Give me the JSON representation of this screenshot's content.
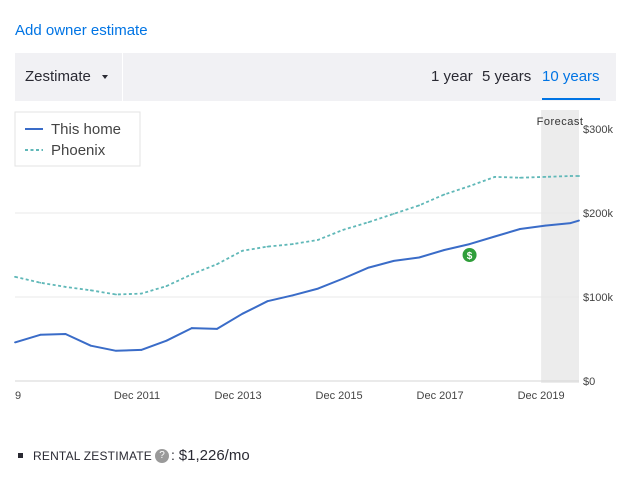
{
  "add_owner_estimate": "Add owner estimate",
  "toolbar": {
    "dropdown_label": "Zestimate",
    "periods": [
      {
        "label": "1 year",
        "active": false
      },
      {
        "label": "5 years",
        "active": false
      },
      {
        "label": "10 years",
        "active": true
      }
    ]
  },
  "rental": {
    "label": "RENTAL ZESTIMATE",
    "info_icon": "?",
    "separator": ":",
    "value": "$1,226/mo"
  },
  "colors": {
    "accent": "#0074e4",
    "this_home": "#3a6cc8",
    "phoenix": "#60b8b8",
    "forecast_band": "#ececec",
    "gridline": "#e8e8e8",
    "marker": "#2f9e3a"
  },
  "chart_data": {
    "type": "line",
    "forecast_label": "Forecast",
    "forecast_start": "Dec 2019",
    "x_tick_labels": [
      "9",
      "Dec 2011",
      "Dec 2013",
      "Dec 2015",
      "Dec 2017",
      "Dec 2019"
    ],
    "y_tick_labels": [
      "$0",
      "$100k",
      "$200k",
      "$300k"
    ],
    "ylim": [
      0,
      300000
    ],
    "xlim": [
      "Jul 2009",
      "Sep 2020"
    ],
    "grid": true,
    "legend_position": "top-left",
    "sale_marker": {
      "date": "Jul 2018",
      "value": 150000,
      "icon": "dollar-sign-icon"
    },
    "series": [
      {
        "name": "This home",
        "style": "solid",
        "color": "#3a6cc8",
        "points": [
          [
            "Jul 2009",
            46000
          ],
          [
            "Jan 2010",
            55000
          ],
          [
            "Jul 2010",
            56000
          ],
          [
            "Jan 2011",
            42000
          ],
          [
            "Jul 2011",
            36000
          ],
          [
            "Jan 2012",
            37000
          ],
          [
            "Jul 2012",
            48000
          ],
          [
            "Jan 2013",
            63000
          ],
          [
            "Jul 2013",
            62000
          ],
          [
            "Jan 2014",
            80000
          ],
          [
            "Jul 2014",
            95000
          ],
          [
            "Jan 2015",
            102000
          ],
          [
            "Jul 2015",
            110000
          ],
          [
            "Jan 2016",
            122000
          ],
          [
            "Jul 2016",
            135000
          ],
          [
            "Jan 2017",
            143000
          ],
          [
            "Jul 2017",
            147000
          ],
          [
            "Jan 2018",
            156000
          ],
          [
            "Jul 2018",
            163000
          ],
          [
            "Jan 2019",
            172000
          ],
          [
            "Jul 2019",
            181000
          ],
          [
            "Jan 2020",
            185000
          ],
          [
            "Jul 2020",
            188000
          ],
          [
            "Sep 2020",
            191000
          ]
        ]
      },
      {
        "name": "Phoenix",
        "style": "dashed",
        "color": "#60b8b8",
        "points": [
          [
            "Jul 2009",
            124000
          ],
          [
            "Jan 2010",
            117000
          ],
          [
            "Jul 2010",
            112000
          ],
          [
            "Jan 2011",
            108000
          ],
          [
            "Jul 2011",
            103000
          ],
          [
            "Jan 2012",
            104000
          ],
          [
            "Jul 2012",
            113000
          ],
          [
            "Jan 2013",
            127000
          ],
          [
            "Jul 2013",
            139000
          ],
          [
            "Jan 2014",
            155000
          ],
          [
            "Jul 2014",
            160000
          ],
          [
            "Jan 2015",
            163000
          ],
          [
            "Jul 2015",
            168000
          ],
          [
            "Jan 2016",
            180000
          ],
          [
            "Jul 2016",
            189000
          ],
          [
            "Jan 2017",
            199000
          ],
          [
            "Jul 2017",
            209000
          ],
          [
            "Jan 2018",
            222000
          ],
          [
            "Jul 2018",
            232000
          ],
          [
            "Jan 2019",
            243000
          ],
          [
            "Jul 2019",
            242000
          ],
          [
            "Jan 2020",
            243000
          ],
          [
            "Jul 2020",
            244000
          ],
          [
            "Sep 2020",
            244000
          ]
        ]
      }
    ]
  }
}
